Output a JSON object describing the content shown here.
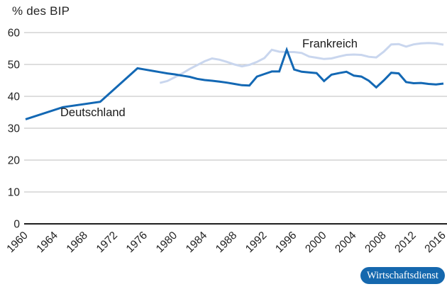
{
  "title": "% des BIP",
  "badge": {
    "label": "Wirtschaftsdienst",
    "bg_color": "#1568ae",
    "text_color": "#ffffff"
  },
  "colors": {
    "grid": "#c9c9c9",
    "axis": "#1f1f1f",
    "text": "#1f1f1f"
  },
  "chart_data": {
    "type": "line",
    "title": "% des BIP",
    "xlabel": "",
    "ylabel": "% des BIP",
    "xlim": [
      1960,
      2016
    ],
    "ylim": [
      0,
      60
    ],
    "grid": "horizontal",
    "legend_position": "inline-labels",
    "x_ticks": [
      1960,
      1964,
      1968,
      1972,
      1976,
      1980,
      1984,
      1988,
      1992,
      1996,
      2000,
      2004,
      2008,
      2012,
      2016
    ],
    "y_ticks": [
      0,
      10,
      20,
      30,
      40,
      50,
      60
    ],
    "series": [
      {
        "name": "Deutschland",
        "color": "#1368b4",
        "points": [
          [
            1960,
            32.8
          ],
          [
            1965,
            36.6
          ],
          [
            1970,
            38.3
          ],
          [
            1975,
            48.8
          ],
          [
            1976,
            48.4
          ],
          [
            1977,
            48.0
          ],
          [
            1978,
            47.6
          ],
          [
            1979,
            47.2
          ],
          [
            1980,
            46.9
          ],
          [
            1981,
            46.5
          ],
          [
            1982,
            46.1
          ],
          [
            1983,
            45.5
          ],
          [
            1984,
            45.1
          ],
          [
            1985,
            44.9
          ],
          [
            1986,
            44.6
          ],
          [
            1987,
            44.3
          ],
          [
            1988,
            43.9
          ],
          [
            1989,
            43.5
          ],
          [
            1990,
            43.4
          ],
          [
            1991,
            46.2
          ],
          [
            1992,
            47.0
          ],
          [
            1993,
            47.8
          ],
          [
            1994,
            47.8
          ],
          [
            1995,
            54.6
          ],
          [
            1996,
            48.4
          ],
          [
            1997,
            47.7
          ],
          [
            1998,
            47.5
          ],
          [
            1999,
            47.3
          ],
          [
            2000,
            44.8
          ],
          [
            2001,
            46.8
          ],
          [
            2002,
            47.3
          ],
          [
            2003,
            47.7
          ],
          [
            2004,
            46.5
          ],
          [
            2005,
            46.2
          ],
          [
            2006,
            44.9
          ],
          [
            2007,
            42.8
          ],
          [
            2008,
            45.0
          ],
          [
            2009,
            47.4
          ],
          [
            2010,
            47.2
          ],
          [
            2011,
            44.5
          ],
          [
            2012,
            44.1
          ],
          [
            2013,
            44.2
          ],
          [
            2014,
            43.9
          ],
          [
            2015,
            43.7
          ],
          [
            2016,
            44.0
          ]
        ]
      },
      {
        "name": "Frankreich",
        "color": "#c9d6ee",
        "points": [
          [
            1978,
            44.2
          ],
          [
            1979,
            44.8
          ],
          [
            1980,
            46.0
          ],
          [
            1981,
            47.2
          ],
          [
            1982,
            48.6
          ],
          [
            1983,
            49.8
          ],
          [
            1984,
            51.0
          ],
          [
            1985,
            51.9
          ],
          [
            1986,
            51.5
          ],
          [
            1987,
            50.8
          ],
          [
            1988,
            50.0
          ],
          [
            1989,
            49.4
          ],
          [
            1990,
            49.9
          ],
          [
            1991,
            50.8
          ],
          [
            1992,
            52.0
          ],
          [
            1993,
            54.6
          ],
          [
            1994,
            54.0
          ],
          [
            1995,
            53.9
          ],
          [
            1996,
            53.9
          ],
          [
            1997,
            53.6
          ],
          [
            1998,
            52.5
          ],
          [
            1999,
            52.1
          ],
          [
            2000,
            51.7
          ],
          [
            2001,
            51.9
          ],
          [
            2002,
            52.5
          ],
          [
            2003,
            53.0
          ],
          [
            2004,
            53.1
          ],
          [
            2005,
            53.0
          ],
          [
            2006,
            52.4
          ],
          [
            2007,
            52.2
          ],
          [
            2008,
            54.0
          ],
          [
            2009,
            56.3
          ],
          [
            2010,
            56.4
          ],
          [
            2011,
            55.6
          ],
          [
            2012,
            56.3
          ],
          [
            2013,
            56.6
          ],
          [
            2014,
            56.7
          ],
          [
            2015,
            56.6
          ],
          [
            2016,
            56.2
          ]
        ]
      }
    ]
  }
}
